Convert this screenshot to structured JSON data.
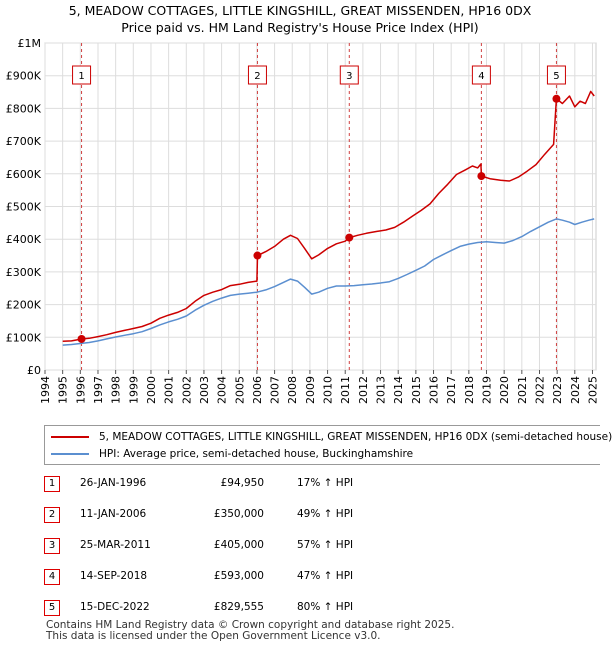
{
  "title_line1": "5, MEADOW COTTAGES, LITTLE KINGSHILL, GREAT MISSENDEN, HP16 0DX",
  "title_line2": "Price paid vs. HM Land Registry's House Price Index (HPI)",
  "colors": {
    "property": "#cc0000",
    "hpi": "#5b8fd0",
    "grid": "#dddddd",
    "marker": "#cc0000"
  },
  "chart_data": {
    "type": "line",
    "title": "5, MEADOW COTTAGES, LITTLE KINGSHILL, GREAT MISSENDEN, HP16 0DX",
    "subtitle": "Price paid vs. HM Land Registry's House Price Index (HPI)",
    "xlim": [
      1994,
      2025.2
    ],
    "ylim": [
      0,
      1000000
    ],
    "y_ticks": [
      {
        "value": 0,
        "label": "£0"
      },
      {
        "value": 100000,
        "label": "£100K"
      },
      {
        "value": 200000,
        "label": "£200K"
      },
      {
        "value": 300000,
        "label": "£300K"
      },
      {
        "value": 400000,
        "label": "£400K"
      },
      {
        "value": 500000,
        "label": "£500K"
      },
      {
        "value": 600000,
        "label": "£600K"
      },
      {
        "value": 700000,
        "label": "£700K"
      },
      {
        "value": 800000,
        "label": "£800K"
      },
      {
        "value": 900000,
        "label": "£900K"
      },
      {
        "value": 1000000,
        "label": "£1M"
      }
    ],
    "x_ticks": [
      "1994",
      "1995",
      "1996",
      "1997",
      "1998",
      "1999",
      "2000",
      "2001",
      "2002",
      "2003",
      "2004",
      "2005",
      "2006",
      "2007",
      "2008",
      "2009",
      "2010",
      "2011",
      "2012",
      "2013",
      "2014",
      "2015",
      "2016",
      "2017",
      "2018",
      "2019",
      "2020",
      "2021",
      "2022",
      "2023",
      "2024",
      "2025"
    ],
    "grid": true,
    "legend_position": "below",
    "series": [
      {
        "name": "5, MEADOW COTTAGES, LITTLE KINGSHILL, GREAT MISSENDEN, HP16 0DX (semi-detached house)",
        "color": "#cc0000",
        "points": [
          [
            1995.0,
            88000
          ],
          [
            1995.5,
            89000
          ],
          [
            1996.07,
            94950
          ],
          [
            1996.5,
            97000
          ],
          [
            1997.0,
            102000
          ],
          [
            1997.5,
            108000
          ],
          [
            1998.0,
            115000
          ],
          [
            1998.5,
            121000
          ],
          [
            1999.0,
            127000
          ],
          [
            1999.5,
            133000
          ],
          [
            2000.0,
            143000
          ],
          [
            2000.5,
            158000
          ],
          [
            2001.0,
            168000
          ],
          [
            2001.5,
            176000
          ],
          [
            2002.0,
            188000
          ],
          [
            2002.5,
            210000
          ],
          [
            2003.0,
            228000
          ],
          [
            2003.5,
            238000
          ],
          [
            2004.0,
            246000
          ],
          [
            2004.5,
            258000
          ],
          [
            2005.0,
            262000
          ],
          [
            2005.5,
            268000
          ],
          [
            2006.0,
            272000
          ],
          [
            2006.03,
            350000
          ],
          [
            2006.5,
            362000
          ],
          [
            2007.0,
            378000
          ],
          [
            2007.5,
            400000
          ],
          [
            2007.9,
            412000
          ],
          [
            2008.3,
            402000
          ],
          [
            2008.7,
            372000
          ],
          [
            2009.1,
            340000
          ],
          [
            2009.5,
            352000
          ],
          [
            2010.0,
            372000
          ],
          [
            2010.5,
            386000
          ],
          [
            2011.0,
            394000
          ],
          [
            2011.23,
            405000
          ],
          [
            2011.7,
            412000
          ],
          [
            2012.2,
            418000
          ],
          [
            2012.8,
            424000
          ],
          [
            2013.3,
            428000
          ],
          [
            2013.8,
            436000
          ],
          [
            2014.3,
            452000
          ],
          [
            2014.8,
            470000
          ],
          [
            2015.3,
            488000
          ],
          [
            2015.8,
            508000
          ],
          [
            2016.3,
            540000
          ],
          [
            2016.8,
            568000
          ],
          [
            2017.3,
            598000
          ],
          [
            2017.8,
            612000
          ],
          [
            2018.2,
            624000
          ],
          [
            2018.5,
            618000
          ],
          [
            2018.68,
            630000
          ],
          [
            2018.71,
            593000
          ],
          [
            2019.2,
            585000
          ],
          [
            2019.8,
            580000
          ],
          [
            2020.3,
            578000
          ],
          [
            2020.8,
            590000
          ],
          [
            2021.3,
            608000
          ],
          [
            2021.8,
            628000
          ],
          [
            2022.3,
            660000
          ],
          [
            2022.8,
            690000
          ],
          [
            2022.96,
            829555
          ],
          [
            2023.3,
            815000
          ],
          [
            2023.7,
            838000
          ],
          [
            2024.0,
            805000
          ],
          [
            2024.3,
            822000
          ],
          [
            2024.6,
            815000
          ],
          [
            2024.9,
            852000
          ],
          [
            2025.1,
            838000
          ]
        ]
      },
      {
        "name": "HPI: Average price, semi-detached house, Buckinghamshire",
        "color": "#5b8fd0",
        "points": [
          [
            1995.0,
            76000
          ],
          [
            1995.5,
            78000
          ],
          [
            1996.0,
            81000
          ],
          [
            1996.5,
            84000
          ],
          [
            1997.0,
            89000
          ],
          [
            1997.5,
            95000
          ],
          [
            1998.0,
            101000
          ],
          [
            1998.5,
            106000
          ],
          [
            1999.0,
            111000
          ],
          [
            1999.5,
            117000
          ],
          [
            2000.0,
            127000
          ],
          [
            2000.5,
            138000
          ],
          [
            2001.0,
            147000
          ],
          [
            2001.5,
            155000
          ],
          [
            2002.0,
            165000
          ],
          [
            2002.5,
            183000
          ],
          [
            2003.0,
            198000
          ],
          [
            2003.5,
            210000
          ],
          [
            2004.0,
            220000
          ],
          [
            2004.5,
            228000
          ],
          [
            2005.0,
            232000
          ],
          [
            2005.5,
            235000
          ],
          [
            2006.0,
            238000
          ],
          [
            2006.5,
            245000
          ],
          [
            2007.0,
            255000
          ],
          [
            2007.5,
            268000
          ],
          [
            2007.9,
            278000
          ],
          [
            2008.3,
            272000
          ],
          [
            2008.7,
            253000
          ],
          [
            2009.1,
            232000
          ],
          [
            2009.5,
            238000
          ],
          [
            2010.0,
            250000
          ],
          [
            2010.5,
            257000
          ],
          [
            2011.0,
            257000
          ],
          [
            2011.5,
            258000
          ],
          [
            2012.0,
            261000
          ],
          [
            2012.5,
            263000
          ],
          [
            2013.0,
            266000
          ],
          [
            2013.5,
            270000
          ],
          [
            2014.0,
            280000
          ],
          [
            2014.5,
            292000
          ],
          [
            2015.0,
            305000
          ],
          [
            2015.5,
            318000
          ],
          [
            2016.0,
            338000
          ],
          [
            2016.5,
            352000
          ],
          [
            2017.0,
            365000
          ],
          [
            2017.5,
            378000
          ],
          [
            2018.0,
            385000
          ],
          [
            2018.5,
            390000
          ],
          [
            2019.0,
            392000
          ],
          [
            2019.5,
            390000
          ],
          [
            2020.0,
            388000
          ],
          [
            2020.5,
            396000
          ],
          [
            2021.0,
            408000
          ],
          [
            2021.5,
            424000
          ],
          [
            2022.0,
            438000
          ],
          [
            2022.5,
            452000
          ],
          [
            2022.96,
            462000
          ],
          [
            2023.3,
            458000
          ],
          [
            2023.7,
            452000
          ],
          [
            2024.0,
            445000
          ],
          [
            2024.4,
            452000
          ],
          [
            2024.8,
            458000
          ],
          [
            2025.1,
            462000
          ]
        ]
      }
    ],
    "sales": [
      {
        "id": "1",
        "x": 1996.07,
        "price": 94950
      },
      {
        "id": "2",
        "x": 2006.03,
        "price": 350000
      },
      {
        "id": "3",
        "x": 2011.23,
        "price": 405000
      },
      {
        "id": "4",
        "x": 2018.71,
        "price": 593000
      },
      {
        "id": "5",
        "x": 2022.96,
        "price": 829555
      }
    ]
  },
  "legend": {
    "property_label": "5, MEADOW COTTAGES, LITTLE KINGSHILL, GREAT MISSENDEN, HP16 0DX (semi-detached house)",
    "hpi_label": "HPI: Average price, semi-detached house, Buckinghamshire"
  },
  "sales_table": [
    {
      "num": "1",
      "date": "26-JAN-1996",
      "price": "£94,950",
      "hpi": "17% ↑ HPI"
    },
    {
      "num": "2",
      "date": "11-JAN-2006",
      "price": "£350,000",
      "hpi": "49% ↑ HPI"
    },
    {
      "num": "3",
      "date": "25-MAR-2011",
      "price": "£405,000",
      "hpi": "57% ↑ HPI"
    },
    {
      "num": "4",
      "date": "14-SEP-2018",
      "price": "£593,000",
      "hpi": "47% ↑ HPI"
    },
    {
      "num": "5",
      "date": "15-DEC-2022",
      "price": "£829,555",
      "hpi": "80% ↑ HPI"
    }
  ],
  "footer_line1": "Contains HM Land Registry data © Crown copyright and database right 2025.",
  "footer_line2": "This data is licensed under the Open Government Licence v3.0."
}
